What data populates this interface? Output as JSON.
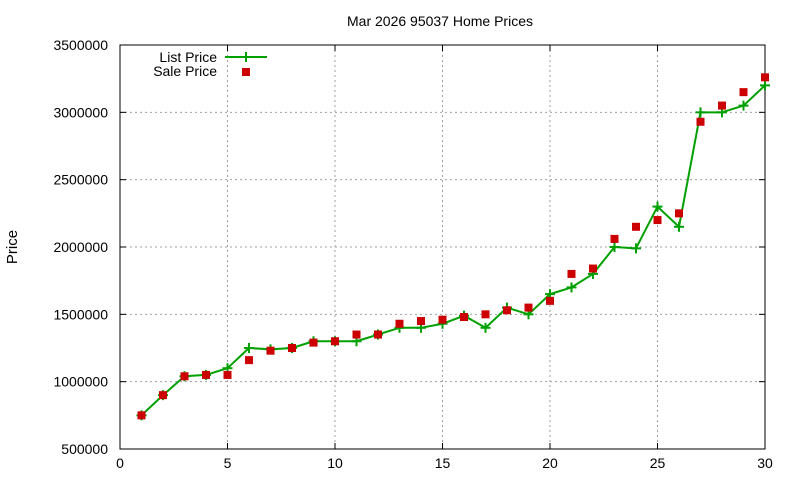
{
  "chart_data": {
    "type": "line",
    "title": "Mar 2026 95037 Home Prices",
    "xlabel": "",
    "ylabel": "Price",
    "xlim": [
      0,
      30
    ],
    "ylim": [
      500000,
      3500000
    ],
    "xticks": [
      "0",
      "5",
      "10",
      "15",
      "20",
      "25",
      "30"
    ],
    "yticks": [
      "500000",
      "1000000",
      "1500000",
      "2000000",
      "2500000",
      "3000000",
      "3500000"
    ],
    "grid": true,
    "legend_position": "top-left",
    "x": [
      1,
      2,
      3,
      4,
      5,
      6,
      7,
      8,
      9,
      10,
      11,
      12,
      13,
      14,
      15,
      16,
      17,
      18,
      19,
      20,
      21,
      22,
      23,
      24,
      25,
      26,
      27,
      28,
      29,
      30
    ],
    "series": [
      {
        "name": "List Price",
        "style": "linespoints",
        "color": "#00a000",
        "values": [
          750000,
          900000,
          1040000,
          1050000,
          1100000,
          1250000,
          1240000,
          1250000,
          1300000,
          1300000,
          1300000,
          1350000,
          1400000,
          1400000,
          1430000,
          1490000,
          1400000,
          1550000,
          1500000,
          1650000,
          1700000,
          1800000,
          2000000,
          1990000,
          2300000,
          2150000,
          3000000,
          3000000,
          3050000,
          3200000
        ]
      },
      {
        "name": "Sale Price",
        "style": "points",
        "color": "#cc0000",
        "values": [
          750000,
          900000,
          1040000,
          1050000,
          1050000,
          1160000,
          1230000,
          1250000,
          1290000,
          1300000,
          1350000,
          1350000,
          1430000,
          1450000,
          1460000,
          1480000,
          1500000,
          1530000,
          1550000,
          1600000,
          1800000,
          1840000,
          2060000,
          2150000,
          2200000,
          2250000,
          2930000,
          3050000,
          3150000,
          3260000
        ]
      }
    ]
  }
}
